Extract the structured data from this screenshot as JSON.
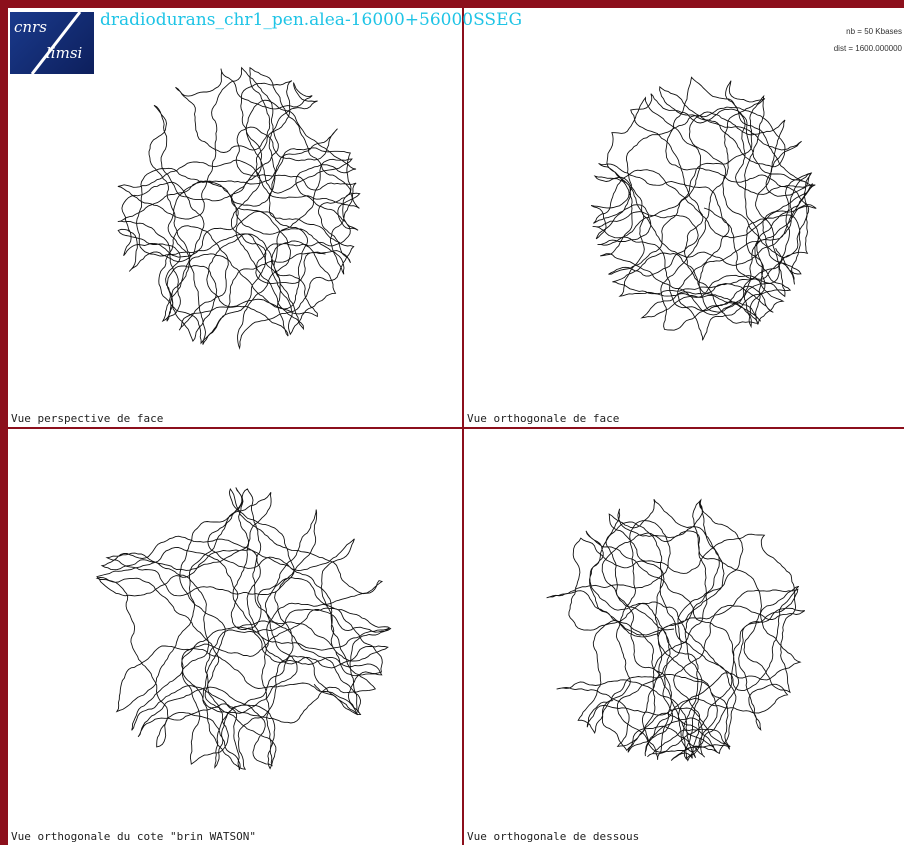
{
  "header": {
    "title": "dradiodurans_chr1_pen.alea-16000+56000SSEG",
    "logo": {
      "top": "cnrs",
      "bottom": "limsi"
    }
  },
  "info": {
    "nb": "nb = 50 Kbases",
    "dist": "dist = 1600.000000"
  },
  "panels": [
    {
      "label": "Vue perspective de face"
    },
    {
      "label": "Vue orthogonale de face"
    },
    {
      "label": "Vue orthogonale du cote \"brin WATSON\""
    },
    {
      "label": "Vue orthogonale de dessous"
    }
  ]
}
